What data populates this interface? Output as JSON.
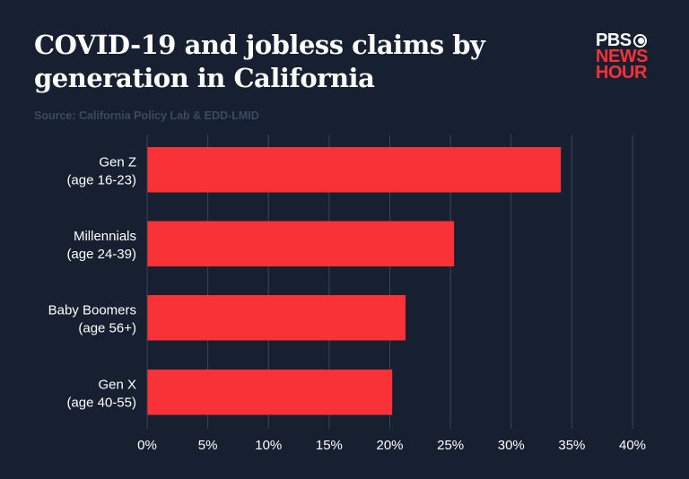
{
  "title": "COVID-19 and jobless claims by generation in California",
  "source": "Source: California Policy Lab & EDD-LMID",
  "logo": {
    "line1": "PBS",
    "line2": "NEWS",
    "line3": "HOUR"
  },
  "colors": {
    "background": "#172030",
    "bar": "#f93238",
    "grid": "#3a4556",
    "text": "#ffffff"
  },
  "chart_data": {
    "type": "bar",
    "orientation": "horizontal",
    "categories": [
      [
        "Gen Z",
        "(age 16-23)"
      ],
      [
        "Millennials",
        "(age 24-39)"
      ],
      [
        "Baby Boomers",
        "(age 56+)"
      ],
      [
        "Gen X",
        "(age 40-55)"
      ]
    ],
    "values": [
      34.1,
      25.3,
      21.3,
      20.2
    ],
    "xlim": [
      0,
      40
    ],
    "xticks": [
      0,
      5,
      10,
      15,
      20,
      25,
      30,
      35,
      40
    ],
    "xtick_labels": [
      "0%",
      "5%",
      "10%",
      "15%",
      "20%",
      "25%",
      "30%",
      "35%",
      "40%"
    ],
    "grid": true,
    "title": "COVID-19 and jobless claims by generation in California"
  }
}
